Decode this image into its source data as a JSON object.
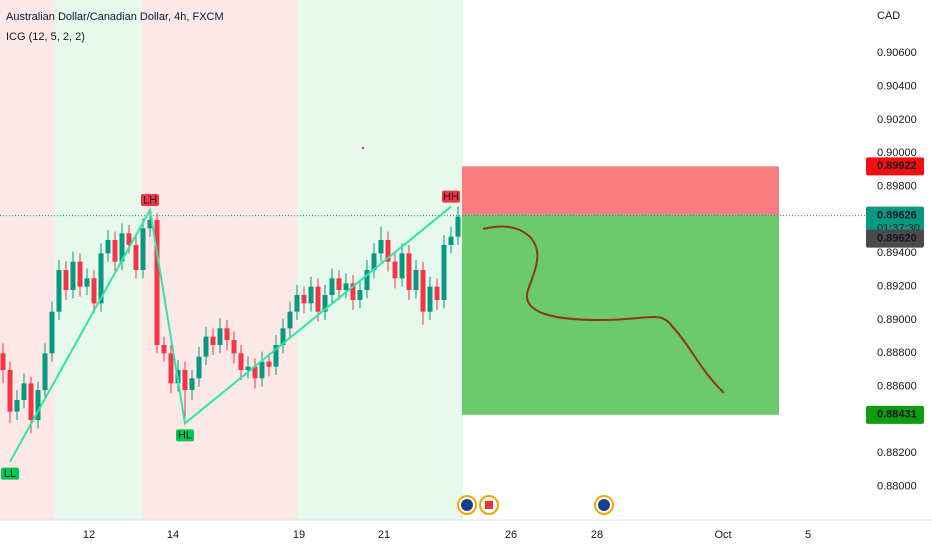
{
  "chart_data": {
    "type": "candlestick",
    "title": "Australian Dollar/Canadian Dollar, 4h, FXCM",
    "subtitle": "ICG  (12, 5, 2, 2)",
    "currency": "CAD",
    "ylim": [
      0.878,
      0.9092
    ],
    "yticks": [
      {
        "value": 0.906,
        "label": "0.90600"
      },
      {
        "value": 0.904,
        "label": "0.90400"
      },
      {
        "value": 0.902,
        "label": "0.90200"
      },
      {
        "value": 0.9,
        "label": "0.90000"
      },
      {
        "value": 0.898,
        "label": "0.89800"
      },
      {
        "value": 0.894,
        "label": "0.89400"
      },
      {
        "value": 0.892,
        "label": "0.89200"
      },
      {
        "value": 0.89,
        "label": "0.89000"
      },
      {
        "value": 0.888,
        "label": "0.88800"
      },
      {
        "value": 0.886,
        "label": "0.88600"
      },
      {
        "value": 0.882,
        "label": "0.88200"
      },
      {
        "value": 0.88,
        "label": "0.88000"
      }
    ],
    "x_labels": [
      "12",
      "14",
      "19",
      "21",
      "26",
      "28",
      "Oct",
      "5"
    ],
    "up_color": "#089981",
    "down_color": "#f23645",
    "ohlc": [
      [
        0.888,
        0.8886,
        0.8862,
        0.887
      ],
      [
        0.887,
        0.8875,
        0.8838,
        0.8845
      ],
      [
        0.8845,
        0.8858,
        0.884,
        0.8852
      ],
      [
        0.8852,
        0.8868,
        0.8847,
        0.8862
      ],
      [
        0.8862,
        0.8866,
        0.8832,
        0.884
      ],
      [
        0.884,
        0.8863,
        0.8835,
        0.8858
      ],
      [
        0.8858,
        0.8886,
        0.8853,
        0.888
      ],
      [
        0.888,
        0.8911,
        0.8875,
        0.8905
      ],
      [
        0.8905,
        0.8936,
        0.89,
        0.893
      ],
      [
        0.893,
        0.8935,
        0.8912,
        0.8918
      ],
      [
        0.8918,
        0.8941,
        0.8913,
        0.8935
      ],
      [
        0.8935,
        0.894,
        0.8914,
        0.892
      ],
      [
        0.892,
        0.8931,
        0.8915,
        0.8925
      ],
      [
        0.8925,
        0.893,
        0.8904,
        0.891
      ],
      [
        0.891,
        0.8946,
        0.8905,
        0.894
      ],
      [
        0.894,
        0.8954,
        0.8935,
        0.8948
      ],
      [
        0.8948,
        0.8953,
        0.8929,
        0.8935
      ],
      [
        0.8935,
        0.8958,
        0.893,
        0.8952
      ],
      [
        0.8952,
        0.8957,
        0.894,
        0.8945
      ],
      [
        0.8945,
        0.895,
        0.8925,
        0.893
      ],
      [
        0.893,
        0.8961,
        0.8925,
        0.8955
      ],
      [
        0.8955,
        0.8966,
        0.895,
        0.896
      ],
      [
        0.896,
        0.8964,
        0.888,
        0.8885
      ],
      [
        0.8885,
        0.889,
        0.8875,
        0.888
      ],
      [
        0.888,
        0.8885,
        0.8856,
        0.8862
      ],
      [
        0.8862,
        0.8876,
        0.8857,
        0.887
      ],
      [
        0.887,
        0.8875,
        0.884,
        0.8858
      ],
      [
        0.8858,
        0.887,
        0.8852,
        0.8865
      ],
      [
        0.8865,
        0.8884,
        0.886,
        0.8878
      ],
      [
        0.8878,
        0.8896,
        0.8873,
        0.889
      ],
      [
        0.889,
        0.8895,
        0.8879,
        0.8885
      ],
      [
        0.8885,
        0.8901,
        0.888,
        0.8895
      ],
      [
        0.8895,
        0.89,
        0.8882,
        0.8888
      ],
      [
        0.8888,
        0.8893,
        0.8874,
        0.888
      ],
      [
        0.888,
        0.8885,
        0.8864,
        0.887
      ],
      [
        0.887,
        0.8878,
        0.8865,
        0.8872
      ],
      [
        0.8872,
        0.8877,
        0.8859,
        0.8865
      ],
      [
        0.8865,
        0.8881,
        0.886,
        0.8875
      ],
      [
        0.8875,
        0.888,
        0.8866,
        0.8872
      ],
      [
        0.8872,
        0.8891,
        0.8867,
        0.8885
      ],
      [
        0.8885,
        0.8901,
        0.888,
        0.8895
      ],
      [
        0.8895,
        0.8911,
        0.889,
        0.8905
      ],
      [
        0.8905,
        0.8921,
        0.89,
        0.8915
      ],
      [
        0.8915,
        0.892,
        0.8904,
        0.891
      ],
      [
        0.891,
        0.8926,
        0.8905,
        0.892
      ],
      [
        0.892,
        0.8925,
        0.8899,
        0.8905
      ],
      [
        0.8905,
        0.8921,
        0.89,
        0.8915
      ],
      [
        0.8915,
        0.8931,
        0.891,
        0.8925
      ],
      [
        0.8925,
        0.893,
        0.8912,
        0.8918
      ],
      [
        0.8918,
        0.8928,
        0.8913,
        0.8922
      ],
      [
        0.8922,
        0.8927,
        0.8906,
        0.8912
      ],
      [
        0.8912,
        0.8924,
        0.8907,
        0.8918
      ],
      [
        0.8918,
        0.8936,
        0.8913,
        0.893
      ],
      [
        0.893,
        0.8946,
        0.8925,
        0.894
      ],
      [
        0.894,
        0.8956,
        0.8935,
        0.8948
      ],
      [
        0.8948,
        0.8953,
        0.8929,
        0.8935
      ],
      [
        0.8935,
        0.894,
        0.8919,
        0.8925
      ],
      [
        0.8925,
        0.8946,
        0.892,
        0.894
      ],
      [
        0.894,
        0.8945,
        0.8912,
        0.8918
      ],
      [
        0.8918,
        0.8936,
        0.8913,
        0.893
      ],
      [
        0.893,
        0.8935,
        0.8897,
        0.8905
      ],
      [
        0.8905,
        0.8926,
        0.89,
        0.892
      ],
      [
        0.892,
        0.8925,
        0.8906,
        0.8912
      ],
      [
        0.8912,
        0.8951,
        0.8907,
        0.8945
      ],
      [
        0.8945,
        0.8956,
        0.894,
        0.895
      ],
      [
        0.895,
        0.8968,
        0.8945,
        0.8962
      ]
    ],
    "zigzag": [
      {
        "label": "LL",
        "value": 0.8815
      },
      {
        "label": "LH",
        "value": 0.8966
      },
      {
        "label": "HL",
        "value": 0.8838
      },
      {
        "label": "HH",
        "value": 0.8968
      }
    ],
    "zigzag_color": "#2ee6a6",
    "position": {
      "stop": 0.89922,
      "entry": 0.8963,
      "target": 0.88431
    },
    "last_price": 0.89626,
    "countdown": "01:37:30",
    "marker_price": {
      "value": 0.8962,
      "label": "0.89620"
    }
  }
}
